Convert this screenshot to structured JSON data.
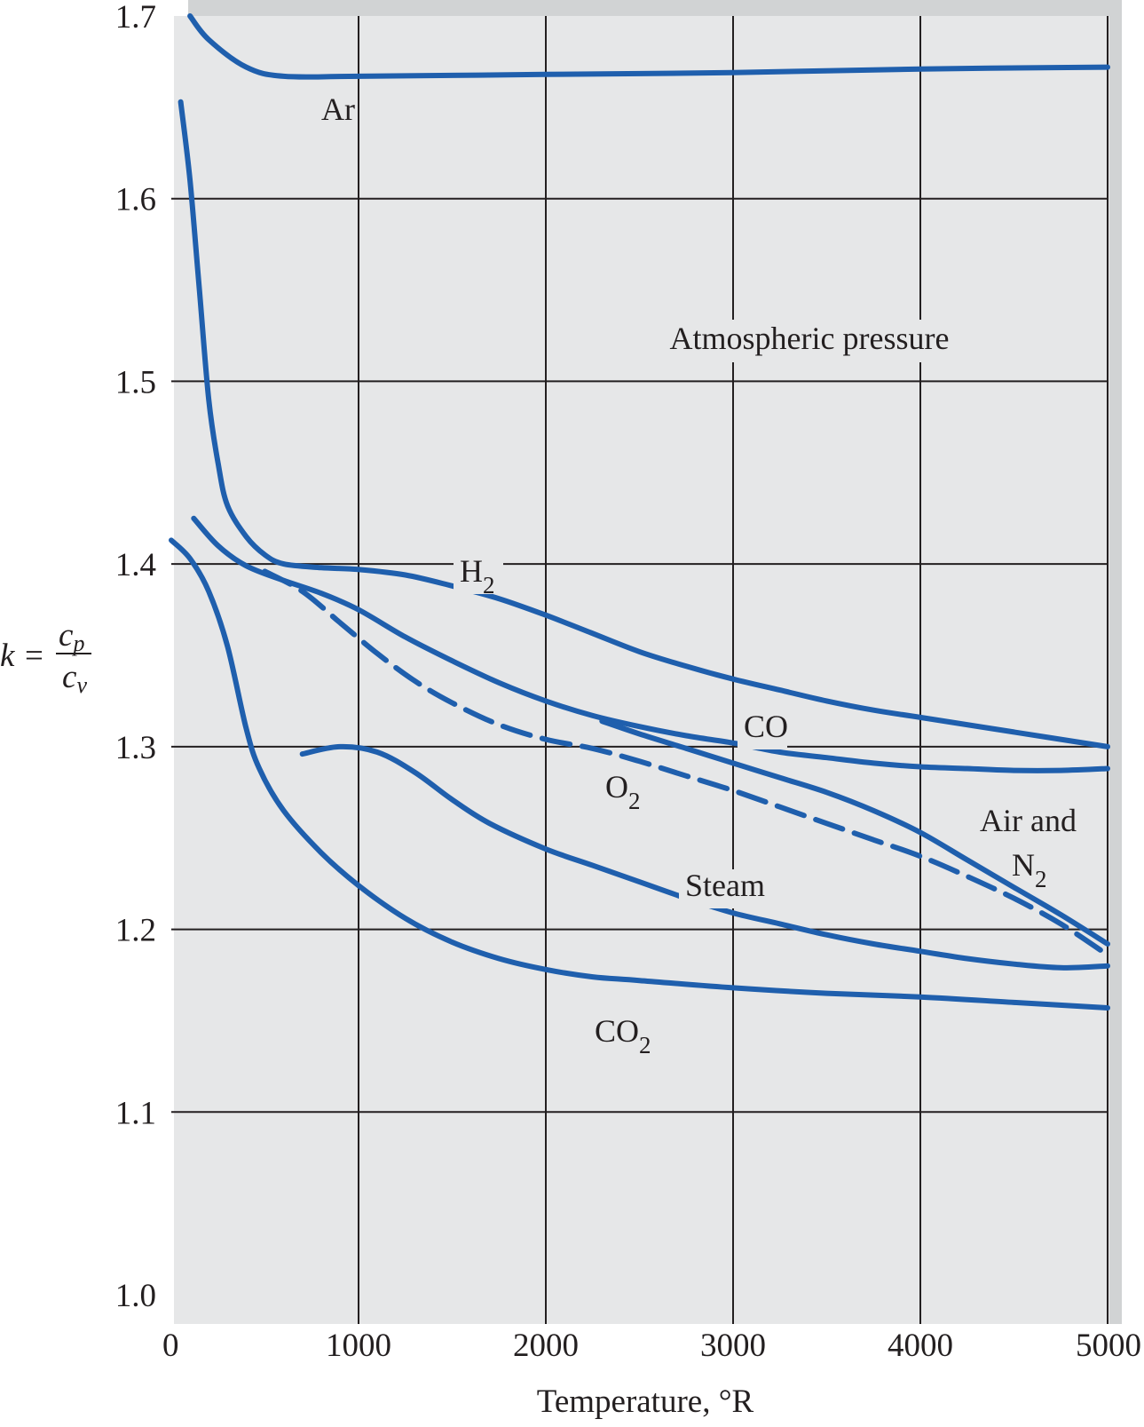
{
  "chart_data": {
    "type": "line",
    "xlabel": "Temperature, °R",
    "ylabel": {
      "main": "k =",
      "numerator": "c",
      "numerator_sub": "p",
      "denominator": "c",
      "denominator_sub": "v"
    },
    "xlim": [
      0,
      5000
    ],
    "ylim": [
      1.0,
      1.7
    ],
    "x_ticks": [
      0,
      1000,
      2000,
      3000,
      4000,
      5000
    ],
    "y_ticks": [
      1.0,
      1.1,
      1.2,
      1.3,
      1.4,
      1.5,
      1.6,
      1.7
    ],
    "x_tick_labels": [
      "0",
      "1000",
      "2000",
      "3000",
      "4000",
      "5000"
    ],
    "y_tick_labels": [
      "1.0",
      "1.1",
      "1.2",
      "1.3",
      "1.4",
      "1.5",
      "1.6",
      "1.7"
    ],
    "grid": true,
    "annotation": "Atmospheric pressure",
    "colors": {
      "line": "#1f5fad",
      "plot_bg": "#e6e7e8",
      "border": "#d1d3d4",
      "grid": "#231f20",
      "text": "#231f20"
    },
    "series": [
      {
        "key": "ar",
        "name": "Ar",
        "dashed": false,
        "points": [
          [
            100,
            1.7
          ],
          [
            200,
            1.687
          ],
          [
            400,
            1.672
          ],
          [
            600,
            1.667
          ],
          [
            1000,
            1.667
          ],
          [
            2000,
            1.668
          ],
          [
            3000,
            1.669
          ],
          [
            4000,
            1.671
          ],
          [
            5000,
            1.672
          ]
        ]
      },
      {
        "key": "h2",
        "name": "H",
        "sub": "2",
        "dashed": false,
        "points": [
          [
            50,
            1.653
          ],
          [
            100,
            1.61
          ],
          [
            150,
            1.55
          ],
          [
            200,
            1.49
          ],
          [
            250,
            1.455
          ],
          [
            300,
            1.432
          ],
          [
            400,
            1.415
          ],
          [
            500,
            1.405
          ],
          [
            600,
            1.4
          ],
          [
            800,
            1.398
          ],
          [
            1000,
            1.397
          ],
          [
            1250,
            1.394
          ],
          [
            1500,
            1.388
          ],
          [
            1750,
            1.381
          ],
          [
            2000,
            1.372
          ],
          [
            2250,
            1.362
          ],
          [
            2500,
            1.352
          ],
          [
            2750,
            1.344
          ],
          [
            3000,
            1.337
          ],
          [
            3250,
            1.331
          ],
          [
            3500,
            1.325
          ],
          [
            3750,
            1.32
          ],
          [
            4000,
            1.316
          ],
          [
            4500,
            1.308
          ],
          [
            5000,
            1.3
          ]
        ]
      },
      {
        "key": "co",
        "name": "CO",
        "dashed": false,
        "points": [
          [
            120,
            1.425
          ],
          [
            250,
            1.41
          ],
          [
            400,
            1.399
          ],
          [
            600,
            1.391
          ],
          [
            800,
            1.384
          ],
          [
            1000,
            1.375
          ],
          [
            1250,
            1.36
          ],
          [
            1500,
            1.347
          ],
          [
            1750,
            1.335
          ],
          [
            2000,
            1.325
          ],
          [
            2250,
            1.317
          ],
          [
            2500,
            1.311
          ],
          [
            2750,
            1.306
          ],
          [
            3000,
            1.302
          ],
          [
            3250,
            1.297
          ],
          [
            3500,
            1.294
          ],
          [
            3750,
            1.291
          ],
          [
            4000,
            1.289
          ],
          [
            4250,
            1.288
          ],
          [
            4500,
            1.287
          ],
          [
            4750,
            1.287
          ],
          [
            5000,
            1.288
          ]
        ]
      },
      {
        "key": "o2",
        "name": "O",
        "sub": "2",
        "dashed": true,
        "points": [
          [
            500,
            1.396
          ],
          [
            700,
            1.385
          ],
          [
            900,
            1.368
          ],
          [
            1100,
            1.351
          ],
          [
            1300,
            1.336
          ],
          [
            1500,
            1.324
          ],
          [
            1750,
            1.312
          ],
          [
            2000,
            1.304
          ],
          [
            2250,
            1.299
          ],
          [
            2500,
            1.292
          ],
          [
            2750,
            1.284
          ],
          [
            3000,
            1.276
          ],
          [
            3250,
            1.267
          ],
          [
            3500,
            1.258
          ],
          [
            3750,
            1.249
          ],
          [
            4000,
            1.24
          ],
          [
            4250,
            1.229
          ],
          [
            4500,
            1.217
          ],
          [
            4750,
            1.203
          ],
          [
            5000,
            1.186
          ]
        ]
      },
      {
        "key": "air",
        "name": "Air and",
        "name2": "N",
        "sub": "2",
        "dashed": false,
        "points": [
          [
            2300,
            1.314
          ],
          [
            2500,
            1.307
          ],
          [
            2750,
            1.299
          ],
          [
            3000,
            1.291
          ],
          [
            3250,
            1.283
          ],
          [
            3500,
            1.275
          ],
          [
            3750,
            1.265
          ],
          [
            4000,
            1.253
          ],
          [
            4250,
            1.238
          ],
          [
            4500,
            1.223
          ],
          [
            4750,
            1.208
          ],
          [
            5000,
            1.192
          ]
        ]
      },
      {
        "key": "steam",
        "name": "Steam",
        "dashed": false,
        "points": [
          [
            700,
            1.296
          ],
          [
            900,
            1.3
          ],
          [
            1100,
            1.297
          ],
          [
            1300,
            1.286
          ],
          [
            1500,
            1.271
          ],
          [
            1700,
            1.258
          ],
          [
            2000,
            1.244
          ],
          [
            2250,
            1.235
          ],
          [
            2500,
            1.226
          ],
          [
            2750,
            1.217
          ],
          [
            3000,
            1.209
          ],
          [
            3250,
            1.203
          ],
          [
            3500,
            1.197
          ],
          [
            3750,
            1.192
          ],
          [
            4000,
            1.188
          ],
          [
            4250,
            1.184
          ],
          [
            4500,
            1.181
          ],
          [
            4750,
            1.179
          ],
          [
            5000,
            1.18
          ]
        ]
      },
      {
        "key": "co2",
        "name": "CO",
        "sub": "2",
        "dashed": false,
        "points": [
          [
            0,
            1.413
          ],
          [
            100,
            1.403
          ],
          [
            200,
            1.385
          ],
          [
            300,
            1.355
          ],
          [
            400,
            1.31
          ],
          [
            470,
            1.288
          ],
          [
            600,
            1.265
          ],
          [
            800,
            1.242
          ],
          [
            1000,
            1.224
          ],
          [
            1250,
            1.206
          ],
          [
            1500,
            1.193
          ],
          [
            1750,
            1.184
          ],
          [
            2000,
            1.178
          ],
          [
            2250,
            1.174
          ],
          [
            2500,
            1.172
          ],
          [
            3000,
            1.168
          ],
          [
            3500,
            1.165
          ],
          [
            4000,
            1.163
          ],
          [
            4500,
            1.16
          ],
          [
            5000,
            1.157
          ]
        ]
      }
    ]
  }
}
